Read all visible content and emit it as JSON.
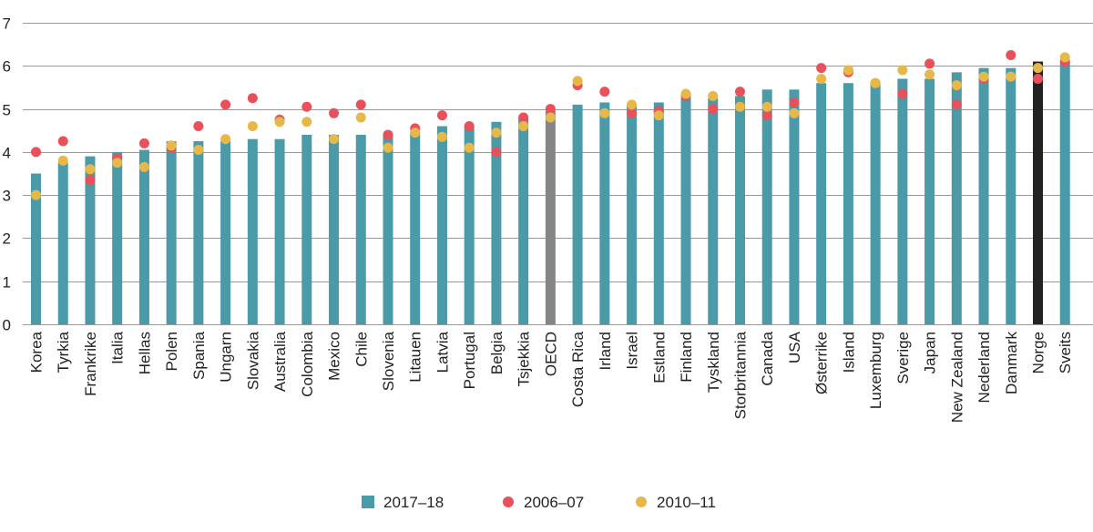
{
  "chart_data": {
    "type": "bar",
    "title": "",
    "xlabel": "",
    "ylabel": "",
    "ylim": [
      0,
      7
    ],
    "yticks": [
      0,
      1,
      2,
      3,
      4,
      5,
      6,
      7
    ],
    "grid": true,
    "legend_position": "bottom-center",
    "categories": [
      "Korea",
      "Tyrkia",
      "Frankrike",
      "Italia",
      "Hellas",
      "Polen",
      "Spania",
      "Ungarn",
      "Slovakia",
      "Australia",
      "Colombia",
      "Mexico",
      "Chile",
      "Slovenia",
      "Litauen",
      "Latvia",
      "Portugal",
      "Belgia",
      "Tsjekkia",
      "OECD",
      "Costa Rica",
      "Irland",
      "Israel",
      "Estland",
      "Finland",
      "Tyskland",
      "Storbritannia",
      "Canada",
      "USA",
      "Østerrike",
      "Island",
      "Luxemburg",
      "Sverige",
      "Japan",
      "New Zealand",
      "Nederland",
      "Danmark",
      "Norge",
      "Sveits"
    ],
    "series": [
      {
        "name": "2017–18",
        "kind": "bar",
        "color": "#4a9aa8",
        "values": [
          3.5,
          3.75,
          3.9,
          4.0,
          4.05,
          4.25,
          4.25,
          4.25,
          4.3,
          4.3,
          4.4,
          4.4,
          4.4,
          4.4,
          4.45,
          4.6,
          4.6,
          4.7,
          4.8,
          4.95,
          5.1,
          5.15,
          5.1,
          5.15,
          5.25,
          5.25,
          5.3,
          5.45,
          5.45,
          5.6,
          5.6,
          5.6,
          5.7,
          5.7,
          5.85,
          5.95,
          5.95,
          6.1,
          6.1
        ]
      },
      {
        "name": "2006–07",
        "kind": "dot",
        "color": "#e8505b",
        "values": [
          4.0,
          4.25,
          3.35,
          3.85,
          4.2,
          4.1,
          4.6,
          5.1,
          5.25,
          4.75,
          5.05,
          4.9,
          5.1,
          4.4,
          4.55,
          4.85,
          4.6,
          4.0,
          4.8,
          5.0,
          5.55,
          5.4,
          4.9,
          4.95,
          5.3,
          5.0,
          5.4,
          4.85,
          5.15,
          5.95,
          5.85,
          5.6,
          5.35,
          6.05,
          5.1,
          5.7,
          6.25,
          5.7,
          6.1
        ]
      },
      {
        "name": "2010–11",
        "kind": "dot",
        "color": "#e6b84a",
        "values": [
          3.0,
          3.8,
          3.6,
          3.75,
          3.65,
          4.15,
          4.05,
          4.3,
          4.6,
          4.7,
          4.7,
          4.3,
          4.8,
          4.1,
          4.45,
          4.35,
          4.1,
          4.45,
          4.6,
          4.8,
          5.65,
          4.9,
          5.1,
          4.85,
          5.35,
          5.3,
          5.05,
          5.05,
          4.9,
          5.7,
          5.9,
          5.6,
          5.9,
          5.8,
          5.55,
          5.75,
          5.75,
          5.95,
          6.2
        ]
      }
    ],
    "highlight": [
      {
        "category": "OECD",
        "color": "#858585"
      },
      {
        "category": "Norge",
        "color": "#222222"
      }
    ]
  }
}
